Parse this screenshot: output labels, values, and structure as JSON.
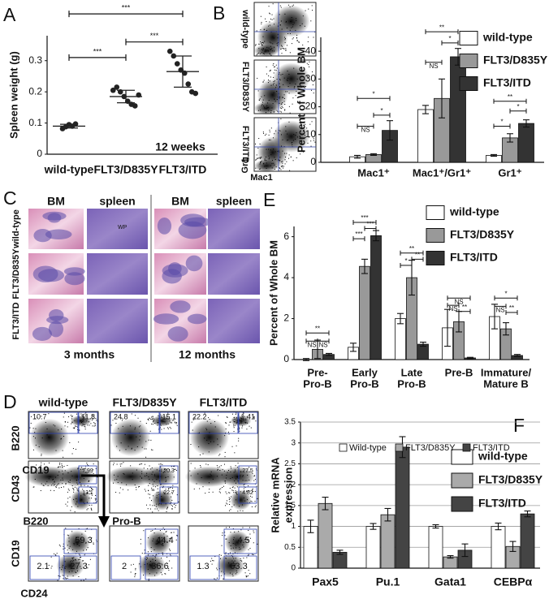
{
  "panel_labels": [
    "A",
    "B",
    "C",
    "D",
    "E",
    "F"
  ],
  "chart_data": [
    {
      "type": "strip",
      "ylabel": "Spleen weight (g)",
      "categories": [
        "wild-type",
        "FLT3/D835Y",
        "FLT3/ITD"
      ],
      "points": [
        [
          0.082,
          0.088,
          0.095,
          0.09,
          0.097
        ],
        [
          0.205,
          0.215,
          0.2,
          0.185,
          0.17,
          0.16,
          0.155,
          0.19
        ],
        [
          0.33,
          0.315,
          0.29,
          0.27,
          0.26,
          0.225,
          0.2,
          0.195
        ]
      ],
      "means": [
        0.09,
        0.185,
        0.265
      ],
      "sd": [
        0.006,
        0.02,
        0.05
      ],
      "color": "#222222",
      "ylim": [
        0,
        0.38
      ],
      "yticks": [
        0,
        0.1,
        0.2,
        0.3
      ],
      "annotation": "12 weeks",
      "brackets": [
        {
          "text": "***",
          "from": 0,
          "to": 1,
          "y": 0.31
        },
        {
          "text": "***",
          "from": 1,
          "to": 2,
          "y": 0.36
        },
        {
          "text": "***",
          "from": 0,
          "to": 2,
          "y": 0.45
        }
      ]
    },
    {
      "type": "bar",
      "ylabel": "Percent of Whole BM",
      "categories": [
        [
          "Mac1⁺"
        ],
        [
          "Mac1⁺/Gr1⁺"
        ],
        [
          "Gr1⁺"
        ]
      ],
      "series": [
        {
          "name": "wild-type",
          "color": "#ffffff",
          "values": [
            2,
            19,
            2.5
          ],
          "errors": [
            0.5,
            1.5,
            0.3
          ]
        },
        {
          "name": "FLT3/D835Y",
          "color": "#999999",
          "values": [
            2.8,
            23,
            8.8
          ],
          "errors": [
            0.3,
            7,
            1.5
          ]
        },
        {
          "name": "FLT3/ITD",
          "color": "#333333",
          "values": [
            11.5,
            38,
            14
          ],
          "errors": [
            3.5,
            3,
            1.3
          ]
        }
      ],
      "ylim": [
        0,
        45
      ],
      "yticks": [
        0,
        10,
        20,
        30,
        40
      ],
      "grid": false,
      "brackets": [
        {
          "text": "*",
          "from": [
            0,
            0
          ],
          "to": [
            0,
            2
          ],
          "y": 23
        },
        {
          "text": "NS",
          "from": [
            0,
            0
          ],
          "to": [
            0,
            1
          ],
          "y": 13
        },
        {
          "text": "*",
          "from": [
            0,
            1
          ],
          "to": [
            0,
            2
          ],
          "y": 17
        },
        {
          "text": "**",
          "from": [
            1,
            0
          ],
          "to": [
            1,
            2
          ],
          "y": 47
        },
        {
          "text": "*",
          "from": [
            1,
            1
          ],
          "to": [
            1,
            2
          ],
          "y": 43
        },
        {
          "text": "NS",
          "from": [
            1,
            0
          ],
          "to": [
            1,
            1
          ],
          "y": 36
        },
        {
          "text": "**",
          "from": [
            2,
            0
          ],
          "to": [
            2,
            2
          ],
          "y": 22
        },
        {
          "text": "*",
          "from": [
            2,
            1
          ],
          "to": [
            2,
            2
          ],
          "y": 18.5
        },
        {
          "text": "*",
          "from": [
            2,
            0
          ],
          "to": [
            2,
            1
          ],
          "y": 13
        }
      ]
    },
    {
      "type": "bar",
      "ylabel": "Percent of Whole BM",
      "categories": [
        [
          "Pre-",
          "Pro-B"
        ],
        [
          "Early",
          "Pro-B"
        ],
        [
          "Late",
          "Pro-B"
        ],
        [
          "Pre-B"
        ],
        [
          "Immature/",
          "Mature B"
        ]
      ],
      "series": [
        {
          "name": "wild-type",
          "color": "#ffffff",
          "values": [
            0,
            0.6,
            2.0,
            1.55,
            2.1
          ],
          "errors": [
            0.05,
            0.2,
            0.25,
            0.9,
            0.6
          ]
        },
        {
          "name": "FLT3/D835Y",
          "color": "#999999",
          "values": [
            0.5,
            4.55,
            4.0,
            1.85,
            1.5
          ],
          "errors": [
            0.45,
            0.35,
            0.85,
            0.5,
            0.3
          ]
        },
        {
          "name": "FLT3/ITD",
          "color": "#333333",
          "values": [
            0.25,
            6.05,
            0.75,
            0.08,
            0.2
          ],
          "errors": [
            0.05,
            0.25,
            0.1,
            0.03,
            0.05
          ]
        }
      ],
      "ylim": [
        0,
        6.5
      ],
      "yticks": [
        0,
        2,
        4,
        6
      ],
      "grid": false,
      "brackets": [
        {
          "text": "**",
          "from": [
            0,
            0
          ],
          "to": [
            0,
            2
          ],
          "y": 1.3
        },
        {
          "text": "NS",
          "from": [
            0,
            0
          ],
          "to": [
            0,
            1
          ],
          "y": 0.9
        },
        {
          "text": "NS",
          "from": [
            0,
            1
          ],
          "to": [
            0,
            2
          ],
          "y": 0.9
        },
        {
          "text": "***",
          "from": [
            1,
            0
          ],
          "to": [
            1,
            2
          ],
          "y": 6.7
        },
        {
          "text": "***",
          "from": [
            1,
            1
          ],
          "to": [
            1,
            2
          ],
          "y": 6.4
        },
        {
          "text": "***",
          "from": [
            1,
            0
          ],
          "to": [
            1,
            1
          ],
          "y": 5.9
        },
        {
          "text": "**",
          "from": [
            2,
            0
          ],
          "to": [
            2,
            2
          ],
          "y": 5.2
        },
        {
          "text": "**",
          "from": [
            2,
            1
          ],
          "to": [
            2,
            2
          ],
          "y": 4.9
        },
        {
          "text": "*",
          "from": [
            2,
            0
          ],
          "to": [
            2,
            1
          ],
          "y": 4.6
        },
        {
          "text": "NS",
          "from": [
            3,
            0
          ],
          "to": [
            3,
            2
          ],
          "y": 3.0
        },
        {
          "text": "NS",
          "from": [
            3,
            0
          ],
          "to": [
            3,
            1
          ],
          "y": 2.65
        },
        {
          "text": "**",
          "from": [
            3,
            1
          ],
          "to": [
            3,
            2
          ],
          "y": 2.35
        },
        {
          "text": "*",
          "from": [
            4,
            0
          ],
          "to": [
            4,
            2
          ],
          "y": 3.0
        },
        {
          "text": "NS",
          "from": [
            4,
            0
          ],
          "to": [
            4,
            1
          ],
          "y": 2.6
        },
        {
          "text": "**",
          "from": [
            4,
            1
          ],
          "to": [
            4,
            2
          ],
          "y": 2.3
        }
      ]
    },
    {
      "type": "bar",
      "ylabel": [
        "Relative mRNA",
        "expression"
      ],
      "categories": [
        [
          "Pax5"
        ],
        [
          "Pu.1"
        ],
        [
          "Gata1"
        ],
        [
          "CEBPα"
        ]
      ],
      "legend_names": [
        "Wild-type",
        "FLT3/D835Y",
        "FLT3/ITD"
      ],
      "series": [
        {
          "name": "wild-type",
          "color": "#ffffff",
          "values": [
            1,
            1,
            1,
            1
          ],
          "errors": [
            0.15,
            0.07,
            0.04,
            0.08
          ]
        },
        {
          "name": "FLT3/D835Y",
          "color": "#aaaaaa",
          "values": [
            1.55,
            1.28,
            0.27,
            0.52
          ],
          "errors": [
            0.15,
            0.15,
            0.03,
            0.12
          ]
        },
        {
          "name": "FLT3/ITD",
          "color": "#444444",
          "values": [
            0.38,
            2.9,
            0.43,
            1.3
          ],
          "errors": [
            0.05,
            0.25,
            0.15,
            0.07
          ]
        }
      ],
      "ylim": [
        0,
        3.5
      ],
      "yticks": [
        0,
        0.5,
        1,
        1.5,
        2,
        2.5,
        3,
        3.5
      ],
      "grid": true,
      "brackets": []
    }
  ],
  "flow_B": {
    "rows": [
      "wild-type",
      "FLT3/D835Y",
      "FLT3/ITD"
    ],
    "ylabel": "Gr1",
    "xlabel": "Mac1"
  },
  "histology": {
    "columns": [
      "BM",
      "spleen",
      "BM",
      "spleen"
    ],
    "rows": [
      "wild-type",
      "FLT3/D835Y",
      "FLT3/ITD"
    ],
    "timepoints": [
      "3 months",
      "12 months"
    ],
    "inset": "WP"
  },
  "flow_D": {
    "columns": [
      "wild-type",
      "FLT3/D835Y",
      "FLT3/ITD"
    ],
    "row1": [
      [
        10.7,
        11.8
      ],
      [
        24.8,
        15.1
      ],
      [
        22.2,
        1.41
      ]
    ],
    "row2": [
      [
        7.99,
        13.1
      ],
      [
        20.3,
        22.7
      ],
      [
        27.5,
        4.82
      ]
    ],
    "row3": [
      [
        59.3,
        2.1,
        27.3
      ],
      [
        44.4,
        2,
        36.6
      ],
      [
        4.5,
        1.3,
        63.3
      ]
    ],
    "axis_labels": [
      "B220",
      "CD19",
      "CD43",
      "B220",
      "CD19",
      "CD24"
    ],
    "gate_label": "Pro-B"
  }
}
